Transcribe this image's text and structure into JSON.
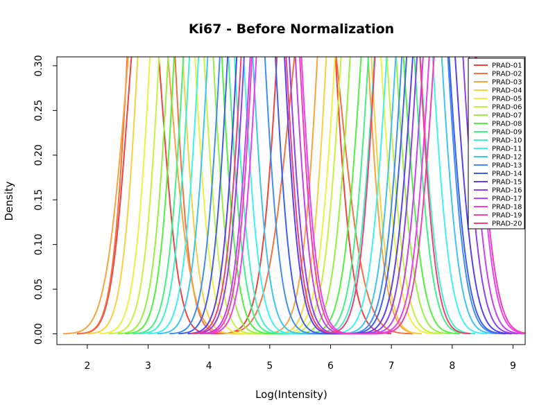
{
  "chart_data": {
    "type": "line",
    "title": "Ki67 - Before Normalization",
    "xlabel": "Log(Intensity)",
    "ylabel": "Density",
    "xlim": [
      1.5,
      9.2
    ],
    "ylim": [
      -0.012,
      0.31
    ],
    "x_ticks": [
      2,
      3,
      4,
      5,
      6,
      7,
      8,
      9
    ],
    "y_ticks": [
      0.0,
      0.05,
      0.1,
      0.15,
      0.2,
      0.25,
      0.3
    ],
    "y_tick_labels": [
      "0.00",
      "0.05",
      "0.10",
      "0.15",
      "0.20",
      "0.25",
      "0.30"
    ],
    "legend_position": "top-right",
    "series": [
      {
        "name": "PRAD-01",
        "color": "#f2403f",
        "components": [
          {
            "w": 0.3,
            "mu": 2.95,
            "sd": 0.28
          },
          {
            "w": 0.7,
            "mu": 5.6,
            "sd": 0.35
          }
        ]
      },
      {
        "name": "PRAD-02",
        "color": "#f5713f",
        "components": [
          {
            "w": 0.55,
            "mu": 3.05,
            "sd": 0.3
          },
          {
            "w": 0.45,
            "mu": 5.75,
            "sd": 0.4
          }
        ]
      },
      {
        "name": "PRAD-03",
        "color": "#f7a33f",
        "components": [
          {
            "w": 0.42,
            "mu": 3.0,
            "sd": 0.35
          },
          {
            "w": 0.58,
            "mu": 6.2,
            "sd": 0.32
          }
        ]
      },
      {
        "name": "PRAD-04",
        "color": "#f7d13f",
        "components": [
          {
            "w": 0.5,
            "mu": 3.2,
            "sd": 0.3
          },
          {
            "w": 0.5,
            "mu": 6.3,
            "sd": 0.3
          }
        ]
      },
      {
        "name": "PRAD-05",
        "color": "#edf23f",
        "components": [
          {
            "w": 0.5,
            "mu": 3.4,
            "sd": 0.3
          },
          {
            "w": 0.5,
            "mu": 6.45,
            "sd": 0.32
          }
        ]
      },
      {
        "name": "PRAD-06",
        "color": "#c6f23f",
        "components": [
          {
            "w": 0.5,
            "mu": 3.55,
            "sd": 0.3
          },
          {
            "w": 0.5,
            "mu": 6.55,
            "sd": 0.32
          }
        ]
      },
      {
        "name": "PRAD-07",
        "color": "#94f23f",
        "components": [
          {
            "w": 0.5,
            "mu": 3.7,
            "sd": 0.3
          },
          {
            "w": 0.5,
            "mu": 6.7,
            "sd": 0.32
          }
        ]
      },
      {
        "name": "PRAD-08",
        "color": "#4ff23f",
        "components": [
          {
            "w": 0.55,
            "mu": 3.82,
            "sd": 0.3
          },
          {
            "w": 0.45,
            "mu": 6.85,
            "sd": 0.32
          }
        ]
      },
      {
        "name": "PRAD-09",
        "color": "#3ff283",
        "components": [
          {
            "w": 0.5,
            "mu": 3.95,
            "sd": 0.3
          },
          {
            "w": 0.5,
            "mu": 7.0,
            "sd": 0.32
          }
        ]
      },
      {
        "name": "PRAD-10",
        "color": "#3ff2c4",
        "components": [
          {
            "w": 0.5,
            "mu": 4.05,
            "sd": 0.3
          },
          {
            "w": 0.5,
            "mu": 7.1,
            "sd": 0.32
          }
        ]
      },
      {
        "name": "PRAD-11",
        "color": "#3ff2f2",
        "components": [
          {
            "w": 0.5,
            "mu": 4.2,
            "sd": 0.3
          },
          {
            "w": 0.5,
            "mu": 7.3,
            "sd": 0.32
          }
        ]
      },
      {
        "name": "PRAD-12",
        "color": "#3fc4f2",
        "components": [
          {
            "w": 0.5,
            "mu": 4.35,
            "sd": 0.3
          },
          {
            "w": 0.5,
            "mu": 7.45,
            "sd": 0.32
          }
        ]
      },
      {
        "name": "PRAD-13",
        "color": "#3f8ff2",
        "components": [
          {
            "w": 0.5,
            "mu": 4.55,
            "sd": 0.3
          },
          {
            "w": 0.5,
            "mu": 7.55,
            "sd": 0.32
          }
        ]
      },
      {
        "name": "PRAD-14",
        "color": "#3f5ef2",
        "components": [
          {
            "w": 0.55,
            "mu": 4.7,
            "sd": 0.3
          },
          {
            "w": 0.45,
            "mu": 7.6,
            "sd": 0.32
          }
        ]
      },
      {
        "name": "PRAD-15",
        "color": "#583ff2",
        "components": [
          {
            "w": 0.55,
            "mu": 4.85,
            "sd": 0.3
          },
          {
            "w": 0.45,
            "mu": 7.7,
            "sd": 0.32
          }
        ]
      },
      {
        "name": "PRAD-16",
        "color": "#8f3ff2",
        "components": [
          {
            "w": 0.5,
            "mu": 4.95,
            "sd": 0.3
          },
          {
            "w": 0.5,
            "mu": 7.8,
            "sd": 0.32
          }
        ]
      },
      {
        "name": "PRAD-17",
        "color": "#c63ff2",
        "components": [
          {
            "w": 0.5,
            "mu": 5.05,
            "sd": 0.3
          },
          {
            "w": 0.5,
            "mu": 7.9,
            "sd": 0.32
          }
        ]
      },
      {
        "name": "PRAD-18",
        "color": "#ed3ff2",
        "components": [
          {
            "w": 0.5,
            "mu": 5.15,
            "sd": 0.3
          },
          {
            "w": 0.5,
            "mu": 8.0,
            "sd": 0.32
          }
        ]
      },
      {
        "name": "PRAD-19",
        "color": "#f23fb4",
        "components": [
          {
            "w": 0.55,
            "mu": 5.1,
            "sd": 0.3
          },
          {
            "w": 0.45,
            "mu": 8.05,
            "sd": 0.32
          }
        ]
      },
      {
        "name": "PRAD-20",
        "color": "#f23f78",
        "components": [
          {
            "w": 0.5,
            "mu": 4.9,
            "sd": 0.3
          },
          {
            "w": 0.5,
            "mu": 7.1,
            "sd": 0.3
          }
        ]
      }
    ]
  }
}
